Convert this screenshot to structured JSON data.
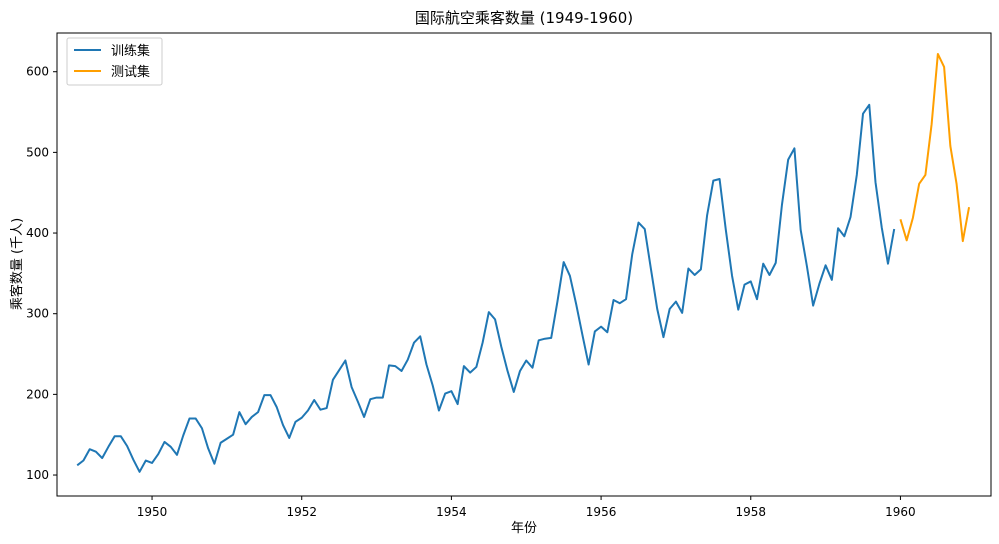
{
  "chart_data": {
    "type": "line",
    "title": "国际航空乘客数量 (1949-1960)",
    "xlabel": "年份",
    "ylabel": "乘客数量 (千人)",
    "xlim": [
      1948.73,
      1961.21
    ],
    "ylim": [
      74,
      648
    ],
    "x_ticks": [
      1950,
      1952,
      1954,
      1956,
      1958,
      1960
    ],
    "y_ticks": [
      100,
      200,
      300,
      400,
      500,
      600
    ],
    "grid": false,
    "legend": {
      "placement": "top-left"
    },
    "series": [
      {
        "name": "训练集",
        "color": "#1f77b4",
        "start": [
          1949,
          1
        ],
        "values": [
          112,
          118,
          132,
          129,
          121,
          135,
          148,
          148,
          136,
          119,
          104,
          118,
          115,
          126,
          141,
          135,
          125,
          149,
          170,
          170,
          158,
          133,
          114,
          140,
          145,
          150,
          178,
          163,
          172,
          178,
          199,
          199,
          184,
          162,
          146,
          166,
          171,
          180,
          193,
          181,
          183,
          218,
          230,
          242,
          209,
          191,
          172,
          194,
          196,
          196,
          236,
          235,
          229,
          243,
          264,
          272,
          237,
          211,
          180,
          201,
          204,
          188,
          235,
          227,
          234,
          264,
          302,
          293,
          259,
          229,
          203,
          229,
          242,
          233,
          267,
          269,
          270,
          315,
          364,
          347,
          312,
          274,
          237,
          278,
          284,
          277,
          317,
          313,
          318,
          374,
          413,
          405,
          355,
          306,
          271,
          306,
          315,
          301,
          356,
          348,
          355,
          422,
          465,
          467,
          404,
          347,
          305,
          336,
          340,
          318,
          362,
          348,
          363,
          435,
          491,
          505,
          404,
          359,
          310,
          337,
          360,
          342,
          406,
          396,
          420,
          472,
          548,
          559,
          463,
          407,
          362,
          405
        ]
      },
      {
        "name": "测试集",
        "color": "#ff9f00",
        "start": [
          1960,
          1
        ],
        "values": [
          417,
          391,
          419,
          461,
          472,
          535,
          622,
          606,
          508,
          461,
          390,
          432
        ]
      }
    ]
  }
}
